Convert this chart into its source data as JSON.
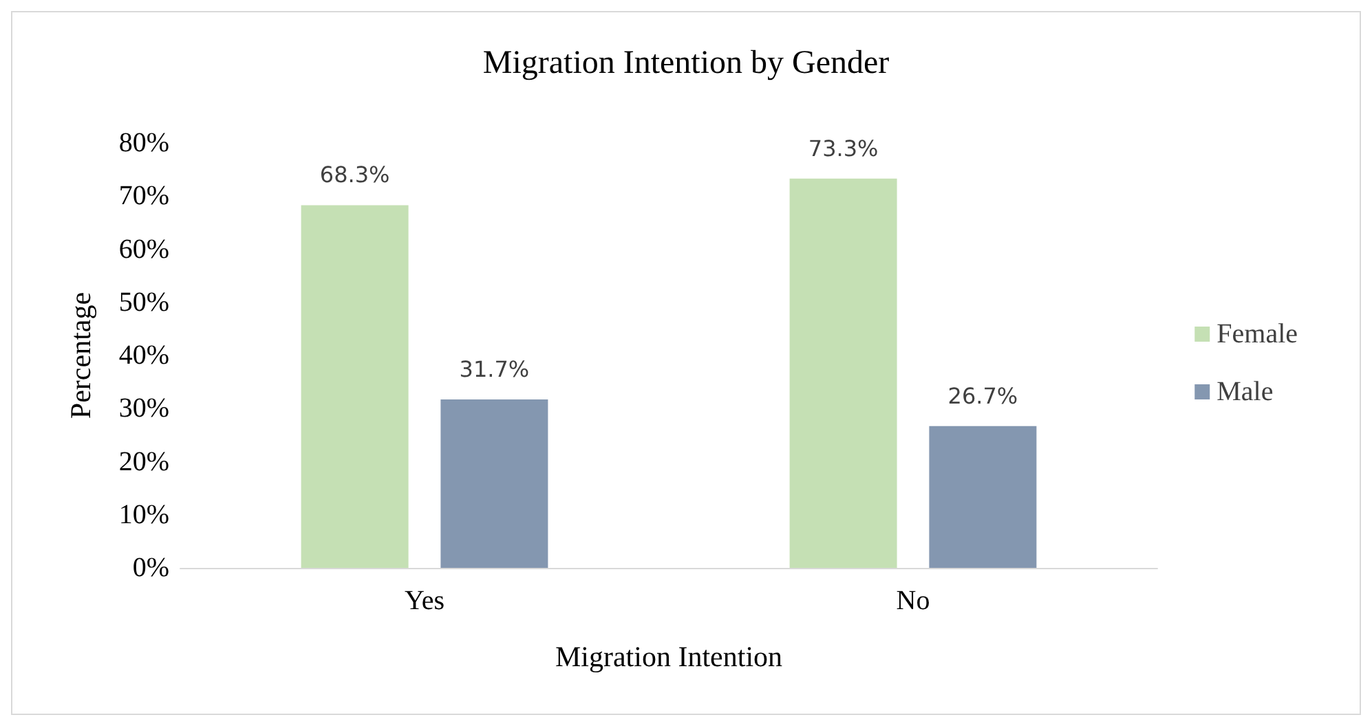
{
  "chart_data": {
    "type": "bar",
    "title": "Migration Intention by Gender",
    "xlabel": "Migration Intention",
    "ylabel": "Percentage",
    "categories": [
      "Yes",
      "No"
    ],
    "series": [
      {
        "name": "Female",
        "color": "#c5e0b4",
        "values": [
          68.3,
          73.3
        ],
        "value_labels": [
          "68.3%",
          "73.3%"
        ]
      },
      {
        "name": "Male",
        "color": "#8497b0",
        "values": [
          31.7,
          26.7
        ],
        "value_labels": [
          "31.7%",
          "26.7%"
        ]
      }
    ],
    "ylim": [
      0,
      80
    ],
    "yticks": [
      {
        "value": 0,
        "label": "0%"
      },
      {
        "value": 10,
        "label": "10%"
      },
      {
        "value": 20,
        "label": "20%"
      },
      {
        "value": 30,
        "label": "30%"
      },
      {
        "value": 40,
        "label": "40%"
      },
      {
        "value": 50,
        "label": "50%"
      },
      {
        "value": 60,
        "label": "60%"
      },
      {
        "value": 70,
        "label": "70%"
      },
      {
        "value": 80,
        "label": "80%"
      }
    ],
    "grid": false,
    "legend": "right"
  }
}
